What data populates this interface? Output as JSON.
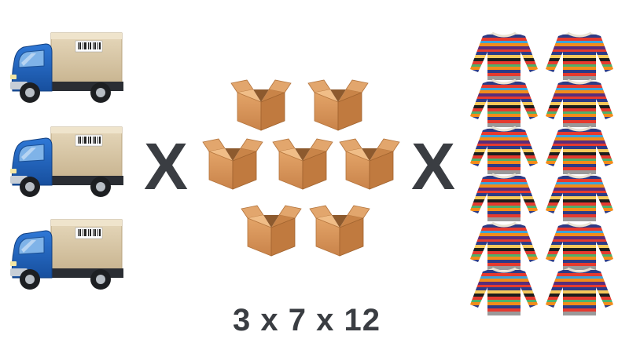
{
  "multiplication_sign": "X",
  "equation": "3 x 7 x 12",
  "colors": {
    "text": "#3a3d42",
    "truck_cab": "#1f5fb8",
    "cargo_box": "#d8c7a6",
    "cardboard": "#d8965a"
  },
  "icons": {
    "truck": "delivery-truck-icon",
    "box": "cardboard-box-icon",
    "sweater": "striped-sweater-icon"
  }
}
